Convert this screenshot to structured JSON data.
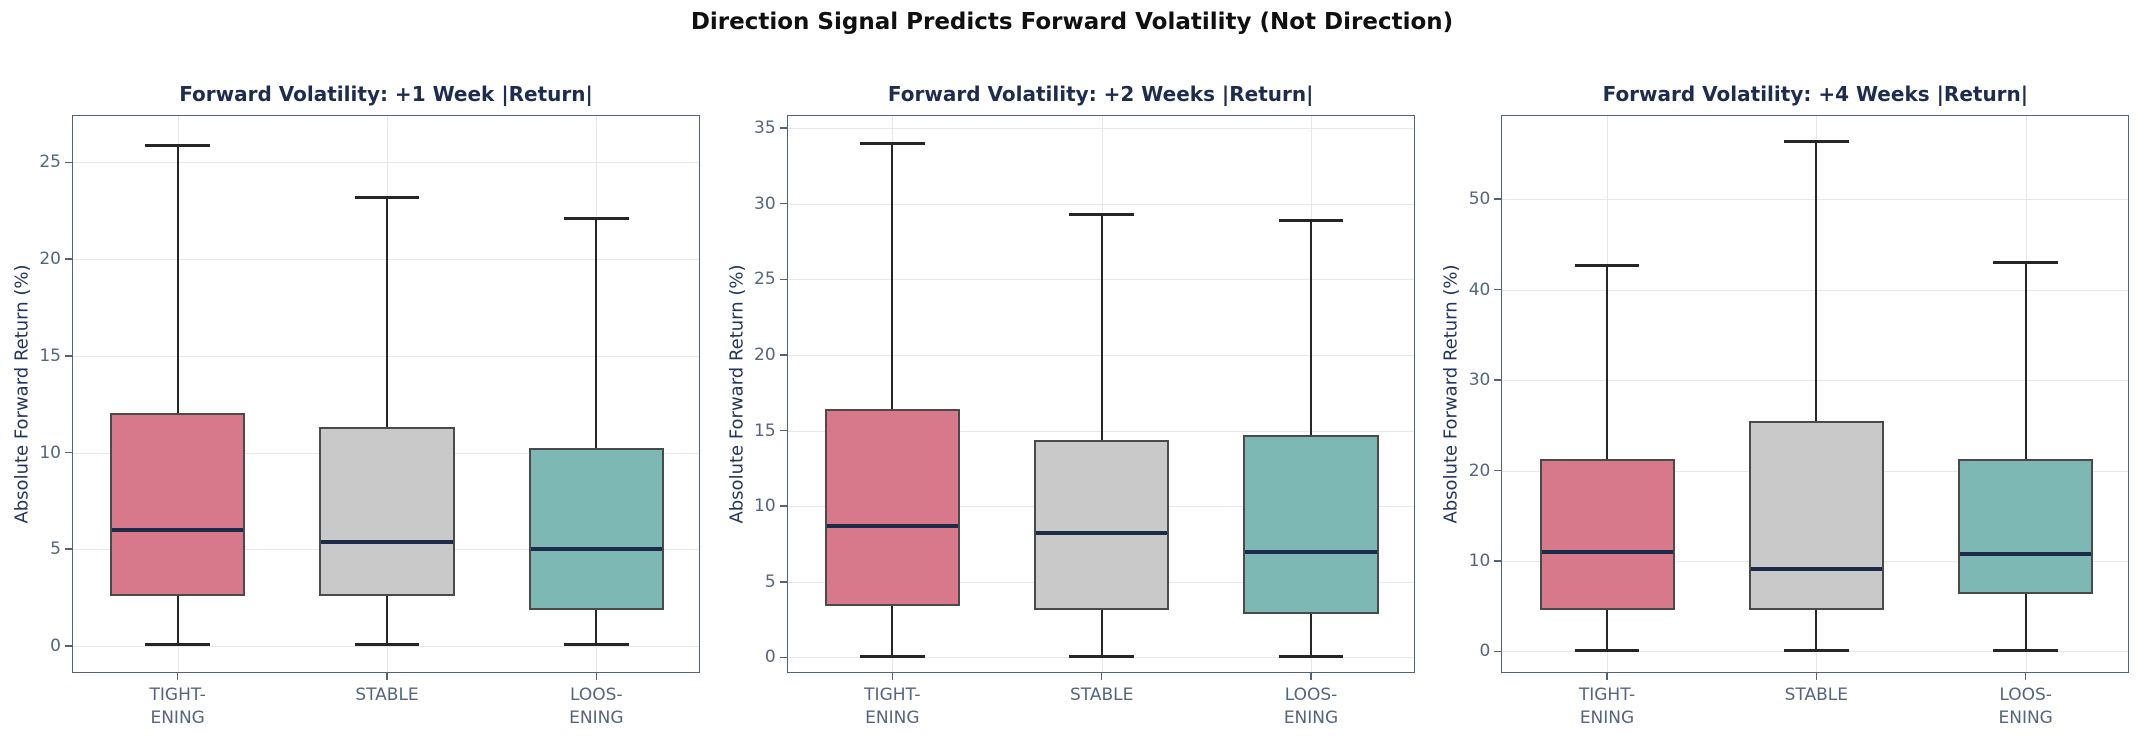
{
  "main_title": "Direction Signal Predicts Forward Volatility (Not Direction)",
  "colors": {
    "tightening_fill": "#d7798b",
    "stable_fill": "#c9c9c9",
    "loosening_fill": "#7db8b4",
    "box_edge": "#4a4a4a",
    "median_line": "#1c2b4a",
    "whisker": "#262626",
    "axis_spine": "#53627c",
    "gridline": "#e8e8e8",
    "tick_label": "#55657f",
    "subplot_title": "#1e2d4f",
    "main_title": "#101010",
    "axis_label": "#22355c",
    "background": "#ffffff"
  },
  "chart_data": [
    {
      "type": "box",
      "title": "Forward Volatility: +1 Week |Return|",
      "ylabel": "Absolute Forward Return (%)",
      "categories": [
        "TIGHTENING",
        "STABLE",
        "LOOSENING"
      ],
      "category_label_lines": [
        [
          "TIGHT-",
          "ENING"
        ],
        [
          "STABLE"
        ],
        [
          "LOOS-",
          "ENING"
        ]
      ],
      "yticks": [
        0,
        5,
        10,
        15,
        20,
        25
      ],
      "ylim": [
        -1.45,
        27.4
      ],
      "grid": true,
      "legend": "none",
      "boxes": [
        {
          "category": "TIGHTENING",
          "fill": "#d7798b",
          "whisker_low": 0.05,
          "q1": 2.6,
          "median": 6.0,
          "q3": 12.05,
          "whisker_high": 25.9
        },
        {
          "category": "STABLE",
          "fill": "#c9c9c9",
          "whisker_low": 0.05,
          "q1": 2.6,
          "median": 5.4,
          "q3": 11.3,
          "whisker_high": 23.2
        },
        {
          "category": "LOOSENING",
          "fill": "#7db8b4",
          "whisker_low": 0.05,
          "q1": 1.85,
          "median": 5.0,
          "q3": 10.25,
          "whisker_high": 22.1
        }
      ]
    },
    {
      "type": "box",
      "title": "Forward Volatility: +2 Weeks |Return|",
      "ylabel": "Absolute Forward Return (%)",
      "categories": [
        "TIGHTENING",
        "STABLE",
        "LOOSENING"
      ],
      "category_label_lines": [
        [
          "TIGHT-",
          "ENING"
        ],
        [
          "STABLE"
        ],
        [
          "LOOS-",
          "ENING"
        ]
      ],
      "yticks": [
        0,
        5,
        10,
        15,
        20,
        25,
        30,
        35
      ],
      "ylim": [
        -1.1,
        35.8
      ],
      "grid": true,
      "legend": "none",
      "boxes": [
        {
          "category": "TIGHTENING",
          "fill": "#d7798b",
          "whisker_low": 0.05,
          "q1": 3.4,
          "median": 8.7,
          "q3": 16.4,
          "whisker_high": 34.0
        },
        {
          "category": "STABLE",
          "fill": "#c9c9c9",
          "whisker_low": 0.05,
          "q1": 3.1,
          "median": 8.2,
          "q3": 14.4,
          "whisker_high": 29.3
        },
        {
          "category": "LOOSENING",
          "fill": "#7db8b4",
          "whisker_low": 0.05,
          "q1": 2.9,
          "median": 7.0,
          "q3": 14.7,
          "whisker_high": 28.9
        }
      ]
    },
    {
      "type": "box",
      "title": "Forward Volatility: +4 Weeks |Return|",
      "ylabel": "Absolute Forward Return (%)",
      "categories": [
        "TIGHTENING",
        "STABLE",
        "LOOSENING"
      ],
      "category_label_lines": [
        [
          "TIGHT-",
          "ENING"
        ],
        [
          "STABLE"
        ],
        [
          "LOOS-",
          "ENING"
        ]
      ],
      "yticks": [
        0,
        10,
        20,
        30,
        40,
        50
      ],
      "ylim": [
        -2.5,
        59.2
      ],
      "grid": true,
      "legend": "none",
      "boxes": [
        {
          "category": "TIGHTENING",
          "fill": "#d7798b",
          "whisker_low": 0.1,
          "q1": 4.6,
          "median": 11.0,
          "q3": 21.3,
          "whisker_high": 42.7
        },
        {
          "category": "STABLE",
          "fill": "#c9c9c9",
          "whisker_low": 0.1,
          "q1": 4.6,
          "median": 9.1,
          "q3": 25.5,
          "whisker_high": 56.4
        },
        {
          "category": "LOOSENING",
          "fill": "#7db8b4",
          "whisker_low": 0.1,
          "q1": 6.4,
          "median": 10.8,
          "q3": 21.3,
          "whisker_high": 43.0
        }
      ]
    }
  ]
}
